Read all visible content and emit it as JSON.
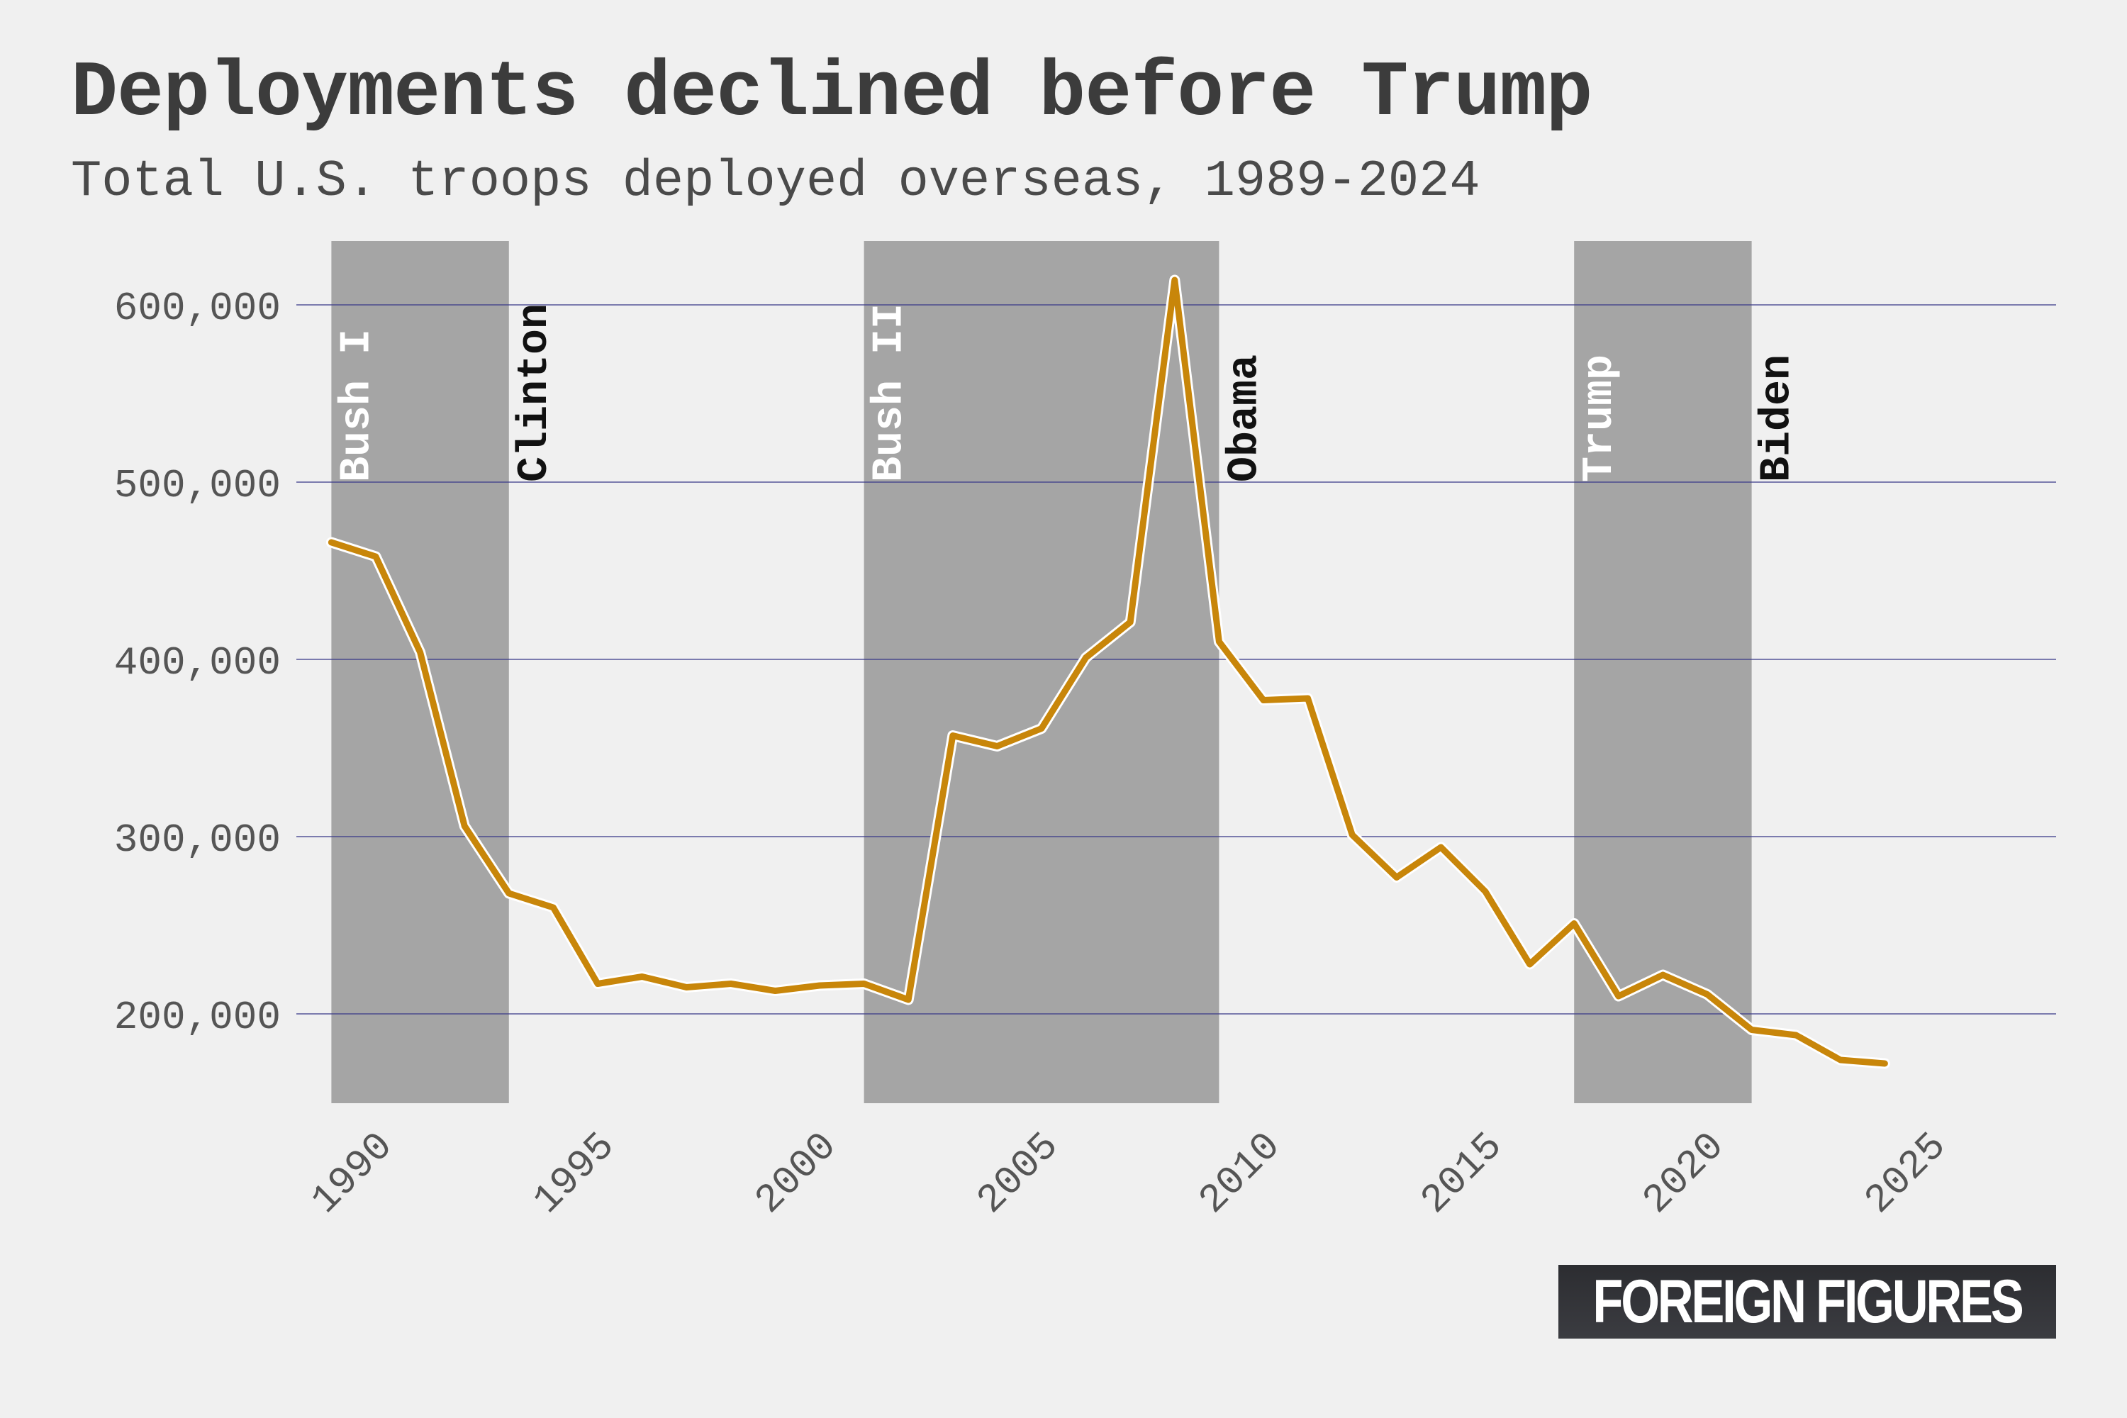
{
  "title": "Deployments declined before Trump",
  "subtitle": "Total U.S. troops deployed overseas, 1989-2024",
  "logo_text": "FOREIGN FIGURES",
  "colors": {
    "background": "#f0f0f0",
    "line": "#c8860a",
    "shade": "#a5a5a5",
    "grid": "#3a3a8a",
    "label_on_shade": "#ffffff",
    "label_off_shade": "#111111",
    "tick_text": "#555555"
  },
  "chart_data": {
    "type": "line",
    "x": [
      1989,
      1990,
      1991,
      1992,
      1993,
      1994,
      1995,
      1996,
      1997,
      1998,
      1999,
      2000,
      2001,
      2002,
      2003,
      2004,
      2005,
      2006,
      2007,
      2008,
      2009,
      2010,
      2011,
      2012,
      2013,
      2014,
      2015,
      2016,
      2017,
      2018,
      2019,
      2020,
      2021,
      2022,
      2023,
      2024
    ],
    "y": [
      466000,
      458000,
      404000,
      306000,
      268000,
      260000,
      217000,
      221000,
      215000,
      217000,
      213000,
      216000,
      217000,
      208000,
      357000,
      351000,
      361000,
      401000,
      421000,
      614000,
      410000,
      377000,
      378000,
      301000,
      277000,
      294000,
      269000,
      228000,
      251000,
      210000,
      222000,
      211000,
      191000,
      188000,
      174000,
      172000
    ],
    "xlim": [
      1989,
      2027
    ],
    "ylim": [
      150000,
      630000
    ],
    "x_ticks": [
      1990,
      1995,
      2000,
      2005,
      2010,
      2015,
      2020,
      2025
    ],
    "y_ticks": [
      200000,
      300000,
      400000,
      500000,
      600000
    ],
    "y_tick_labels": [
      "200,000",
      "300,000",
      "400,000",
      "500,000",
      "600,000"
    ],
    "grid": "horizontal",
    "shaded_periods": [
      {
        "start": 1989,
        "end": 1993
      },
      {
        "start": 2001,
        "end": 2009
      },
      {
        "start": 2017,
        "end": 2021
      }
    ],
    "annotations": [
      {
        "label": "Bush I",
        "x": 1989,
        "on_shade": true
      },
      {
        "label": "Clinton",
        "x": 1993,
        "on_shade": false
      },
      {
        "label": "Bush II",
        "x": 2001,
        "on_shade": true
      },
      {
        "label": "Obama",
        "x": 2009,
        "on_shade": false
      },
      {
        "label": "Trump",
        "x": 2017,
        "on_shade": true
      },
      {
        "label": "Biden",
        "x": 2021,
        "on_shade": false
      }
    ]
  }
}
